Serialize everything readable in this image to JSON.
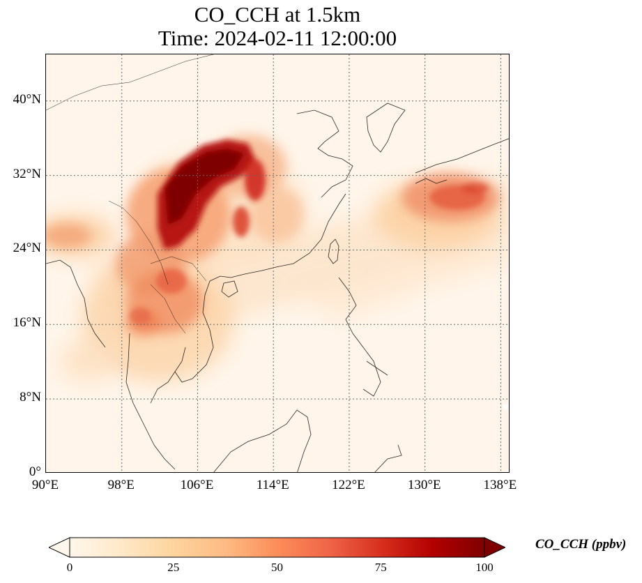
{
  "title": {
    "line1": "CO_CCH at 1.5km",
    "line2": "Time: 2024-02-11 12:00:00"
  },
  "map": {
    "projection": "PlateCarree",
    "lon_range": [
      90,
      139
    ],
    "lat_range": [
      0,
      45
    ],
    "gridlines": "dotted",
    "lat_ticks": [
      {
        "value": 40,
        "label": "40°N"
      },
      {
        "value": 32,
        "label": "32°N"
      },
      {
        "value": 24,
        "label": "24°N"
      },
      {
        "value": 16,
        "label": "16°N"
      },
      {
        "value": 8,
        "label": "8°N"
      },
      {
        "value": 0,
        "label": "0°"
      }
    ],
    "lon_ticks": [
      {
        "value": 90,
        "label": "90°E"
      },
      {
        "value": 98,
        "label": "98°E"
      },
      {
        "value": 106,
        "label": "106°E"
      },
      {
        "value": 114,
        "label": "114°E"
      },
      {
        "value": 122,
        "label": "122°E"
      },
      {
        "value": 130,
        "label": "130°E"
      },
      {
        "value": 138,
        "label": "138°E"
      }
    ]
  },
  "colorbar": {
    "label": "CO_CCH (ppbv)",
    "colormap": "OrRd",
    "min": 0,
    "max": 100,
    "extend": "both",
    "ticks": [
      {
        "value": 0,
        "label": "0"
      },
      {
        "value": 25,
        "label": "25"
      },
      {
        "value": 50,
        "label": "50"
      },
      {
        "value": 75,
        "label": "75"
      },
      {
        "value": 100,
        "label": "100"
      }
    ]
  }
}
